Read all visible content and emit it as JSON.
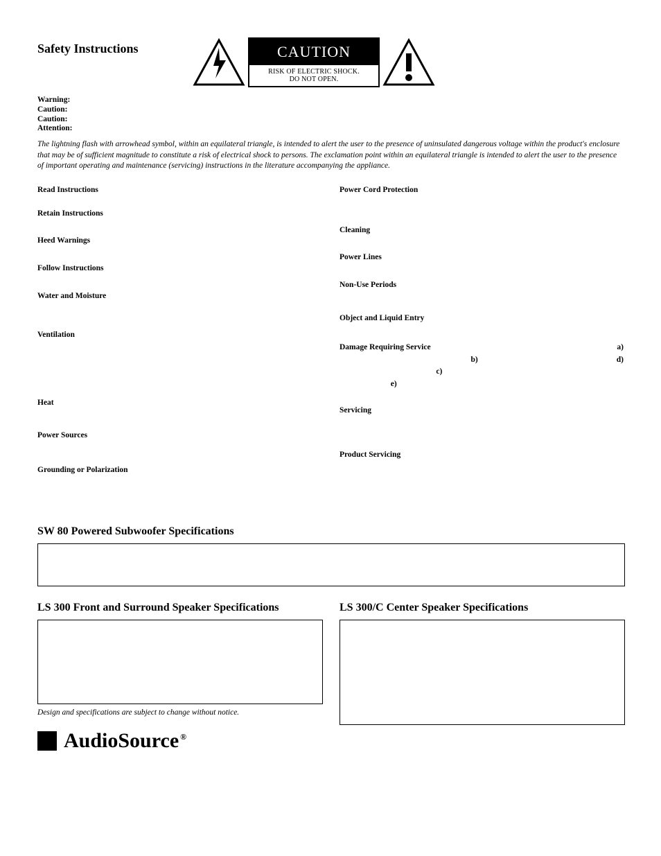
{
  "title": "Safety Instructions",
  "caution": {
    "heading": "CAUTION",
    "sub1": "RISK OF ELECTRIC SHOCK.",
    "sub2": "DO NOT OPEN."
  },
  "warn_labels": [
    "Warning:",
    "Caution:",
    "Caution:",
    "Attention:"
  ],
  "italic_para": "The lightning flash with arrowhead symbol, within an equilateral triangle, is intended to alert the user to the presence of uninsulated dangerous voltage within the product's enclosure that may be of sufficient magnitude to constitute a risk of electrical shock to persons. The exclamation point within an equilateral triangle is intended to alert the user to the presence of important operating and maintenance (servicing) instructions in the literature accompanying the appliance.",
  "left_items": [
    "Read Instructions",
    "Retain Instructions",
    "Heed Warnings",
    "Follow Instructions",
    "Water and Moisture",
    "Ventilation",
    "Heat",
    "Power Sources",
    "Grounding or Polarization"
  ],
  "right_items_top": [
    "Power Cord Protection",
    "Cleaning",
    "Power Lines",
    "Non-Use Periods",
    "Object and Liquid Entry"
  ],
  "dsr": {
    "title": "Damage Requiring Service",
    "a": "a)",
    "b": "b)",
    "c": "c)",
    "d": "d)",
    "e": "e)"
  },
  "right_items_bottom": [
    "Servicing",
    "Product Servicing"
  ],
  "spec_h1": "SW 80 Powered Subwoofer Specifications",
  "spec_h2": "LS 300 Front and Surround Speaker Specifications",
  "spec_h3": "LS 300/C Center Speaker Specifications",
  "design_note": "Design and specifications are subject to change without notice.",
  "brand": "AudioSource",
  "reg": "®",
  "colors": {
    "text": "#000000",
    "bg": "#ffffff"
  },
  "left_spacing_after": [
    16,
    22,
    22,
    22,
    38,
    80,
    30,
    32,
    0
  ],
  "right_top_spacing_after": [
    40,
    22,
    22,
    30,
    24
  ]
}
